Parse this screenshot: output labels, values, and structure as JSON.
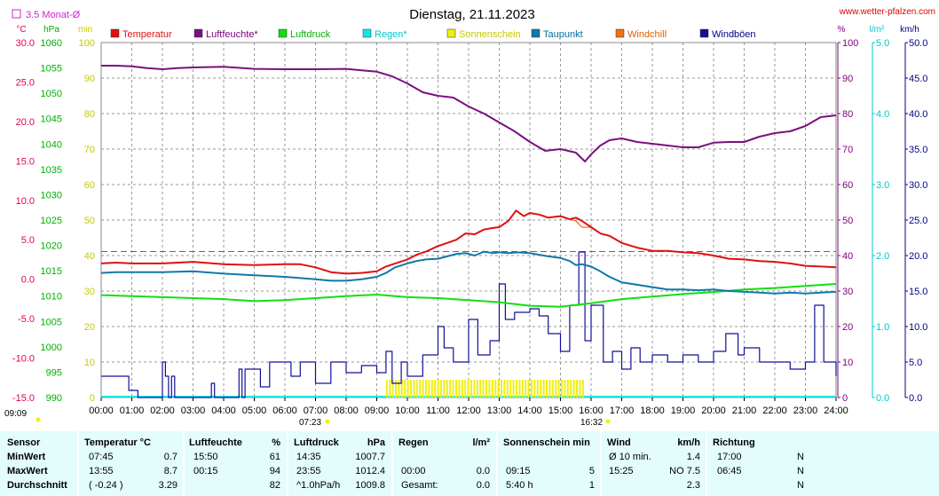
{
  "header": {
    "title": "Dienstag, 21.11.2023",
    "site": "www.wetter-pfalzen.com",
    "avg_label": "3.5 Monat-Ø",
    "sunrise": "07:23",
    "sunset": "16:32",
    "gen_time": "09:09"
  },
  "colors": {
    "temperature": "#e01010",
    "humidity": "#7a1080",
    "pressure": "#10e010",
    "rain": "#10e8e8",
    "sunshine": "#f0f010",
    "dewpoint": "#1078a8",
    "windchill": "#f07010",
    "gusts": "#101098",
    "avg_line": "#d020d0"
  },
  "chart_data": {
    "type": "line",
    "title": "Dienstag, 21.11.2023",
    "x_ticks": [
      "00:00",
      "01:00",
      "02:00",
      "03:00",
      "04:00",
      "05:00",
      "06:00",
      "07:00",
      "08:00",
      "09:00",
      "10:00",
      "11:00",
      "12:00",
      "13:00",
      "14:00",
      "15:00",
      "16:00",
      "17:00",
      "18:00",
      "19:00",
      "20:00",
      "21:00",
      "22:00",
      "23:00",
      "24:00"
    ],
    "axes": {
      "temp": {
        "unit": "°C",
        "min": -15,
        "max": 30,
        "ticks": [
          "30.0",
          "25.0",
          "20.0",
          "15.0",
          "10.0",
          "5.0",
          "0.0",
          "-5.0",
          "-10.0",
          "-15.0"
        ],
        "values": [
          30,
          25,
          20,
          15,
          10,
          5,
          0,
          -5,
          -10,
          -15
        ]
      },
      "pressure": {
        "unit": "hPa",
        "min": 990,
        "max": 1060,
        "ticks": [
          "1060",
          "1055",
          "1050",
          "1045",
          "1040",
          "1035",
          "1030",
          "1025",
          "1020",
          "1015",
          "1010",
          "1005",
          "1000",
          "995",
          "990"
        ],
        "values": [
          1060,
          1055,
          1050,
          1045,
          1040,
          1035,
          1030,
          1025,
          1020,
          1015,
          1010,
          1005,
          1000,
          995,
          990
        ]
      },
      "sun_min": {
        "unit": "min",
        "min": 0,
        "max": 100,
        "ticks": [
          "100",
          "90",
          "80",
          "70",
          "60",
          "50",
          "40",
          "30",
          "20",
          "10",
          "0"
        ],
        "values": [
          100,
          90,
          80,
          70,
          60,
          50,
          40,
          30,
          20,
          10,
          0
        ]
      },
      "humidity": {
        "unit": "%",
        "min": 0,
        "max": 100,
        "ticks": [
          "100",
          "90",
          "80",
          "70",
          "60",
          "50",
          "40",
          "30",
          "20",
          "10",
          "0"
        ],
        "values": [
          100,
          90,
          80,
          70,
          60,
          50,
          40,
          30,
          20,
          10,
          0
        ]
      },
      "rain": {
        "unit": "l/m²",
        "min": 0,
        "max": 5,
        "ticks": [
          "5.0",
          "4.0",
          "3.0",
          "2.0",
          "1.0",
          "0.0"
        ],
        "values": [
          5,
          4,
          3,
          2,
          1,
          0
        ]
      },
      "wind": {
        "unit": "km/h",
        "min": 0,
        "max": 50,
        "ticks": [
          "50.0",
          "45.0",
          "40.0",
          "35.0",
          "30.0",
          "25.0",
          "20.0",
          "15.0",
          "10.0",
          "5.0",
          "0.0"
        ],
        "values": [
          50,
          45,
          40,
          35,
          30,
          25,
          20,
          15,
          10,
          5,
          0
        ]
      }
    },
    "legend": [
      "Temperatur",
      "Luftfeuchte*",
      "Luftdruck",
      "Regen*",
      "Sonnenschein",
      "Taupunkt",
      "Windchill",
      "Windböen"
    ],
    "avg_temp": 3.5,
    "series": [
      {
        "name": "Temperatur",
        "axis": "temp",
        "x": [
          0,
          0.5,
          1,
          2,
          3,
          4,
          5,
          6,
          6.5,
          7,
          7.5,
          8,
          8.5,
          9,
          9.3,
          9.6,
          10,
          10.3,
          10.6,
          11,
          11.3,
          11.6,
          11.9,
          12.2,
          12.5,
          12.8,
          13,
          13.3,
          13.55,
          13.8,
          14,
          14.3,
          14.6,
          15,
          15.3,
          15.5,
          15.7,
          16,
          16.3,
          16.6,
          17,
          17.5,
          18,
          18.5,
          19,
          19.5,
          20,
          20.5,
          21,
          21.5,
          22,
          22.5,
          23,
          23.5,
          24
        ],
        "values": [
          2.0,
          2.1,
          2.0,
          2.0,
          2.2,
          1.9,
          1.8,
          1.9,
          1.9,
          1.5,
          0.9,
          0.7,
          0.8,
          1.0,
          1.6,
          2.0,
          2.5,
          3.1,
          3.5,
          4.2,
          4.6,
          5.0,
          5.8,
          5.7,
          6.3,
          6.5,
          6.6,
          7.4,
          8.7,
          8.0,
          8.4,
          8.2,
          7.8,
          8.0,
          7.6,
          7.8,
          7.4,
          6.6,
          5.8,
          5.5,
          4.6,
          4.0,
          3.6,
          3.6,
          3.4,
          3.3,
          3.0,
          2.6,
          2.5,
          2.3,
          2.2,
          2.0,
          1.7,
          1.6,
          1.5
        ]
      },
      {
        "name": "Windchill",
        "axis": "temp",
        "x": [
          15.3,
          15.5,
          15.7,
          16.0
        ],
        "values": [
          7.6,
          7.4,
          6.6,
          6.6
        ]
      },
      {
        "name": "Taupunkt",
        "axis": "temp",
        "x": [
          0,
          0.5,
          1,
          2,
          3,
          4,
          5,
          6,
          7,
          7.5,
          8,
          8.5,
          9,
          9.3,
          9.6,
          10,
          10.3,
          10.6,
          11,
          11.3,
          11.6,
          11.9,
          12.2,
          12.5,
          12.8,
          13,
          13.3,
          13.6,
          14,
          14.3,
          14.6,
          15,
          15.3,
          15.5,
          15.7,
          16,
          16.3,
          16.6,
          17,
          17.5,
          18,
          18.5,
          19,
          19.5,
          20,
          20.5,
          21,
          21.5,
          22,
          22.5,
          23,
          23.5,
          24
        ],
        "values": [
          0.8,
          0.9,
          0.9,
          0.9,
          1.0,
          0.7,
          0.5,
          0.3,
          0.0,
          -0.2,
          -0.2,
          0.0,
          0.3,
          0.8,
          1.5,
          2.0,
          2.3,
          2.5,
          2.6,
          2.9,
          3.2,
          3.3,
          3.0,
          3.5,
          3.3,
          3.4,
          3.3,
          3.4,
          3.3,
          3.1,
          2.9,
          2.7,
          2.3,
          1.8,
          1.9,
          1.6,
          1.0,
          0.3,
          -0.4,
          -0.7,
          -1.0,
          -1.3,
          -1.3,
          -1.4,
          -1.3,
          -1.5,
          -1.6,
          -1.7,
          -1.8,
          -1.7,
          -1.8,
          -1.7,
          -1.6
        ]
      },
      {
        "name": "Luftfeuchte*",
        "axis": "humidity",
        "x": [
          0,
          0.5,
          1,
          1.5,
          2,
          2.5,
          3,
          4,
          5,
          6,
          7,
          8,
          8.5,
          9,
          9.5,
          10,
          10.5,
          11,
          11.5,
          12,
          12.5,
          13,
          13.5,
          14,
          14.5,
          15,
          15.5,
          15.8,
          16,
          16.3,
          16.6,
          17,
          17.5,
          18,
          18.5,
          19,
          19.5,
          20,
          20.5,
          21,
          21.5,
          22,
          22.5,
          23,
          23.5,
          24
        ],
        "values": [
          93.5,
          93.5,
          93.3,
          92.8,
          92.5,
          92.8,
          93.0,
          93.2,
          92.6,
          92.5,
          92.5,
          92.6,
          92.2,
          91.8,
          90.5,
          88.5,
          86.0,
          85.0,
          84.5,
          82.0,
          80.0,
          77.5,
          75.0,
          72.0,
          69.5,
          70.0,
          69.0,
          66.5,
          68.5,
          71.0,
          72.5,
          73.0,
          72.0,
          71.5,
          71.0,
          70.5,
          70.5,
          71.8,
          72.0,
          72.0,
          73.5,
          74.5,
          75.0,
          76.5,
          79.0,
          79.5
        ]
      },
      {
        "name": "Luftdruck",
        "axis": "pressure",
        "x": [
          0,
          1,
          2,
          3,
          4,
          5,
          6,
          7,
          8,
          9,
          10,
          11,
          12,
          13,
          14,
          15,
          16,
          17,
          18,
          19,
          20,
          21,
          22,
          23,
          24
        ],
        "values": [
          1010.2,
          1010.0,
          1009.8,
          1009.6,
          1009.4,
          1009.0,
          1009.2,
          1009.6,
          1010.0,
          1010.3,
          1009.8,
          1009.6,
          1009.2,
          1008.8,
          1008.1,
          1007.9,
          1008.6,
          1009.4,
          1009.9,
          1010.4,
          1010.8,
          1011.3,
          1011.6,
          1012.0,
          1012.4
        ]
      },
      {
        "name": "Windböen",
        "axis": "wind",
        "x": [
          0,
          0.7,
          0.9,
          1.2,
          2.0,
          2.1,
          2.2,
          2.3,
          2.4,
          3.6,
          3.7,
          4.5,
          4.6,
          4.7,
          5.2,
          5.5,
          6.0,
          6.2,
          6.5,
          7.0,
          7.5,
          8.0,
          8.5,
          9.0,
          9.3,
          9.5,
          9.8,
          10.0,
          10.5,
          11.0,
          11.2,
          11.5,
          12.0,
          12.3,
          12.7,
          13.0,
          13.2,
          13.5,
          14.0,
          14.3,
          14.6,
          15.0,
          15.3,
          15.6,
          15.8,
          16.0,
          16.4,
          16.7,
          17.0,
          17.3,
          17.6,
          18.0,
          18.5,
          19.0,
          19.5,
          20.0,
          20.4,
          20.8,
          21.0,
          21.5,
          22.0,
          22.5,
          23.0,
          23.3,
          23.6,
          24.0
        ],
        "values": [
          3.0,
          3.0,
          1.0,
          0.0,
          5.0,
          3.0,
          0.0,
          3.0,
          0.0,
          2.0,
          0.0,
          4.0,
          0.0,
          4.0,
          1.5,
          5.0,
          5.0,
          3.0,
          5.0,
          2.0,
          5.0,
          3.5,
          4.5,
          3.5,
          6.5,
          2.0,
          5.0,
          3.0,
          6.0,
          10.0,
          7.0,
          5.0,
          11.0,
          6.0,
          8.0,
          16.0,
          11.0,
          12.0,
          12.5,
          11.5,
          9.0,
          6.5,
          13.0,
          20.5,
          8.0,
          13.0,
          5.0,
          6.5,
          4.0,
          7.0,
          5.0,
          6.0,
          5.0,
          6.0,
          5.0,
          6.5,
          9.0,
          6.0,
          7.0,
          5.0,
          5.0,
          4.0,
          5.0,
          13.0,
          5.0,
          3.0
        ]
      },
      {
        "name": "Sonnenschein",
        "axis": "sun_min",
        "type": "bar",
        "x_from": 9.3,
        "x_to": 15.75,
        "value": 5
      }
    ]
  },
  "stats": {
    "headers": [
      {
        "label": "Sensor"
      },
      {
        "label": "Temperatur",
        "unit": "°C"
      },
      {
        "label": "Luftfeuchte",
        "unit": "%"
      },
      {
        "label": "Luftdruck",
        "unit": "hPa"
      },
      {
        "label": "Regen",
        "unit": "l/m²"
      },
      {
        "label": "Sonnenschein min",
        "unit": ""
      },
      {
        "label": "Wind",
        "unit": "km/h"
      },
      {
        "label": "Richtung",
        "unit": ""
      }
    ],
    "rows": [
      {
        "label": "MinWert",
        "temp_time": "07:45",
        "temp_val": "0.7",
        "hum_time": "15:50",
        "hum_val": "61",
        "pres_time": "14:35",
        "pres_val": "1007.7",
        "rain_time": "",
        "rain_val": "",
        "sun_time": "",
        "sun_val": "",
        "wind_time": "Ø 10 min.",
        "wind_val": "1.4",
        "dir_time": "17:00",
        "dir_val": "N"
      },
      {
        "label": "MaxWert",
        "temp_time": "13:55",
        "temp_val": "8.7",
        "hum_time": "00:15",
        "hum_val": "94",
        "pres_time": "23:55",
        "pres_val": "1012.4",
        "rain_time": "00:00",
        "rain_val": "0.0",
        "sun_time": "09:15",
        "sun_val": "5",
        "wind_time": "15:25",
        "wind_val": "NO 7.5",
        "dir_time": "06:45",
        "dir_val": "N"
      },
      {
        "label": "Durchschnitt",
        "temp_time": "( -0.24 )",
        "temp_val": "3.29",
        "hum_time": "",
        "hum_val": "82",
        "pres_time": "^1.0hPa/h",
        "pres_val": "1009.8",
        "rain_time": "Gesamt:",
        "rain_val": "0.0",
        "sun_time": "5:40 h",
        "sun_val": "1",
        "wind_time": "",
        "wind_val": "2.3",
        "dir_time": "",
        "dir_val": "N"
      }
    ]
  }
}
